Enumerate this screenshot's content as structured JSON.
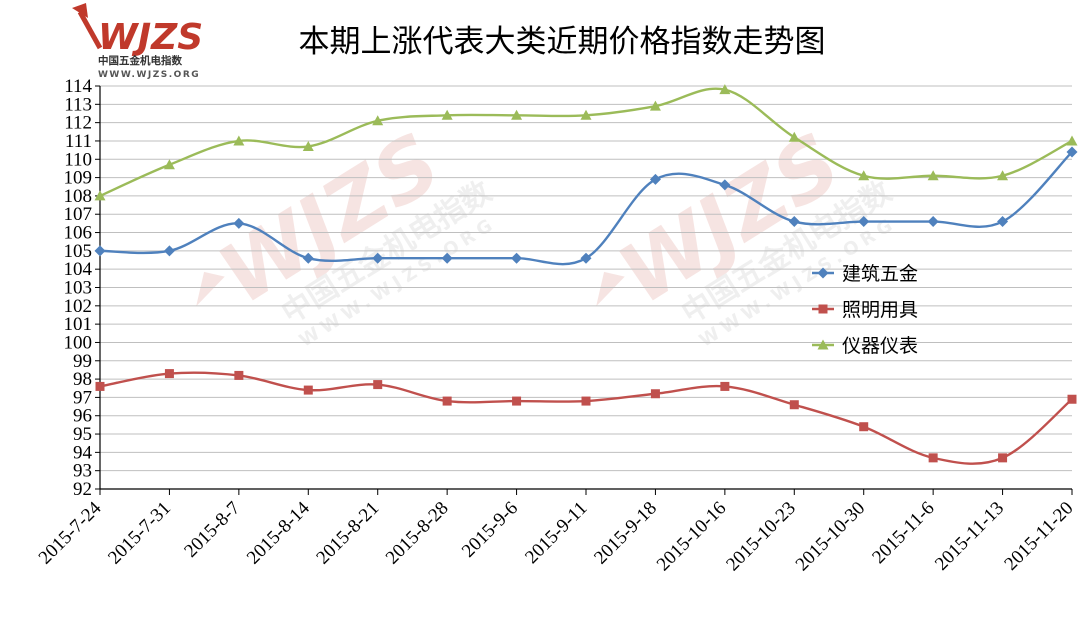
{
  "chart_data": {
    "type": "line",
    "title": "本期上涨代表大类近期价格指数走势图",
    "xlabel": "",
    "ylabel": "",
    "categories": [
      "2015-7-24",
      "2015-7-31",
      "2015-8-7",
      "2015-8-14",
      "2015-8-21",
      "2015-8-28",
      "2015-9-6",
      "2015-9-11",
      "2015-9-18",
      "2015-10-16",
      "2015-10-23",
      "2015-10-30",
      "2015-11-6",
      "2015-11-13",
      "2015-11-20"
    ],
    "ylim": [
      92,
      114
    ],
    "ytick_step": 1,
    "grid": true,
    "legend_position": "right",
    "series": [
      {
        "name": "建筑五金",
        "color": "#4f81bd",
        "marker": "diamond",
        "values": [
          105.0,
          105.0,
          106.5,
          104.6,
          104.6,
          104.6,
          104.6,
          104.6,
          108.9,
          108.6,
          106.6,
          106.6,
          106.6,
          106.6,
          110.4
        ]
      },
      {
        "name": "照明用具",
        "color": "#c0504d",
        "marker": "square",
        "values": [
          97.6,
          98.3,
          98.2,
          97.4,
          97.7,
          96.8,
          96.8,
          96.8,
          97.2,
          97.6,
          96.6,
          95.4,
          93.7,
          93.7,
          96.9
        ]
      },
      {
        "name": "仪器仪表",
        "color": "#9bbb59",
        "marker": "triangle",
        "values": [
          108.0,
          109.7,
          111.0,
          110.7,
          112.1,
          112.4,
          112.4,
          112.4,
          112.9,
          113.8,
          111.2,
          109.1,
          109.1,
          109.1,
          111.0
        ]
      }
    ]
  },
  "logo": {
    "mark": "WJZS",
    "name": "中国五金机电指数",
    "url": "WWW.WJZS.ORG"
  }
}
